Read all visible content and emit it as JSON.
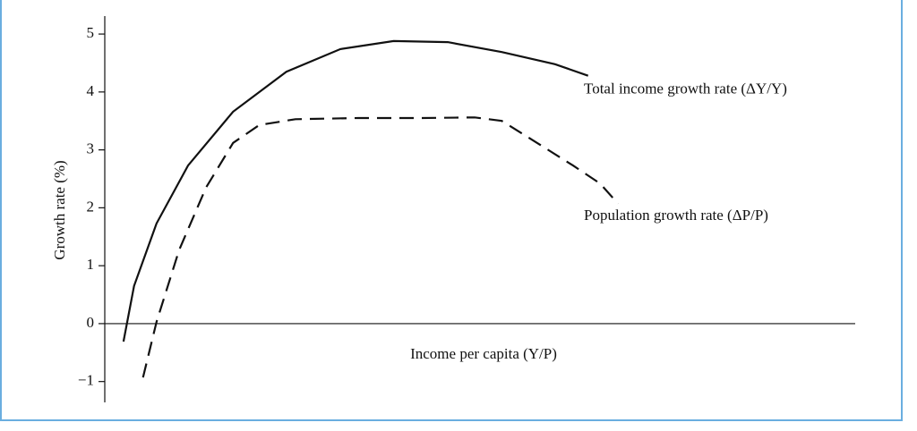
{
  "chart_data": {
    "type": "line",
    "xlabel": "Income per capita (Y/P)",
    "ylabel": "Growth rate (%)",
    "xlim": [
      0,
      100
    ],
    "ylim": [
      -1.36,
      5.31
    ],
    "yticks": [
      {
        "value": -1,
        "label": "−1"
      },
      0,
      1,
      2,
      3,
      4,
      5
    ],
    "series": [
      {
        "name": "Total income growth rate (ΔY/Y)",
        "color": "#111111",
        "dash": false,
        "x": [
          2.5,
          3.9,
          6.9,
          11.1,
          17.1,
          24.2,
          31.4,
          38.5,
          45.7,
          52.9,
          60.0,
          64.4
        ],
        "values": [
          -0.31,
          0.65,
          1.73,
          2.73,
          3.66,
          4.35,
          4.74,
          4.88,
          4.86,
          4.69,
          4.48,
          4.28
        ]
      },
      {
        "name": "Population growth rate (ΔP/P)",
        "color": "#111111",
        "dash": true,
        "x": [
          5.1,
          6.9,
          9.9,
          13.5,
          17.1,
          20.6,
          25.4,
          33.8,
          42.1,
          49.3,
          52.9,
          57.6,
          62.4,
          66.0,
          68.4
        ],
        "values": [
          -0.93,
          0.03,
          1.27,
          2.35,
          3.12,
          3.43,
          3.53,
          3.55,
          3.55,
          3.56,
          3.5,
          3.12,
          2.73,
          2.42,
          2.07
        ]
      }
    ]
  }
}
